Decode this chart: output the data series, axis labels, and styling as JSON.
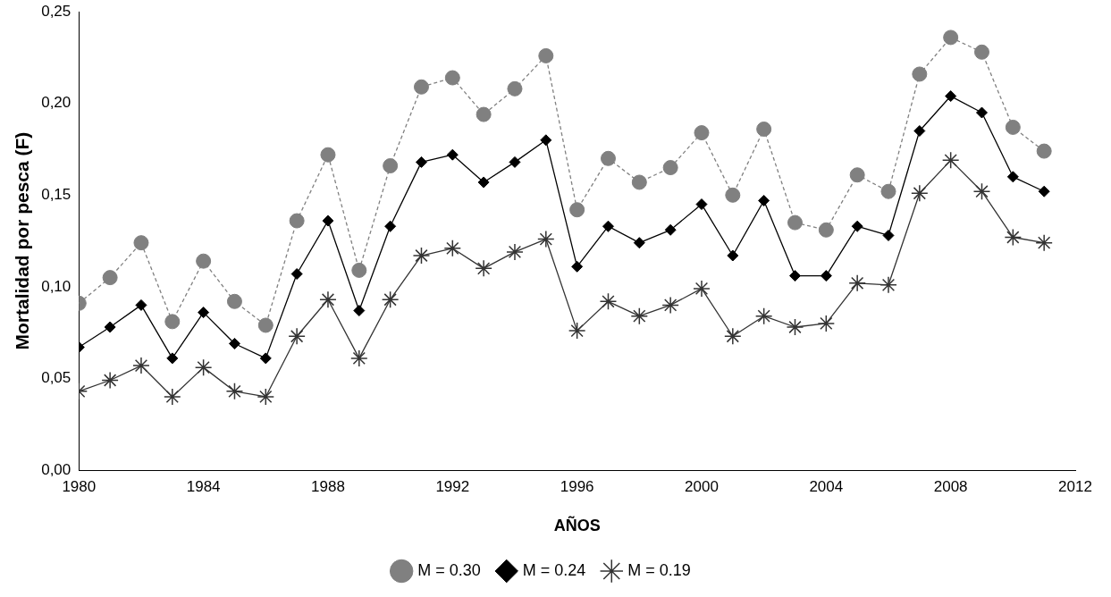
{
  "chart_data": {
    "type": "line",
    "xlabel": "AÑOS",
    "ylabel": "Mortalidad por pesca (F)",
    "x": [
      1980,
      1981,
      1982,
      1983,
      1984,
      1985,
      1986,
      1987,
      1988,
      1989,
      1990,
      1991,
      1992,
      1993,
      1994,
      1995,
      1996,
      1997,
      1998,
      1999,
      2000,
      2001,
      2002,
      2003,
      2004,
      2005,
      2006,
      2007,
      2008,
      2009,
      2010,
      2011
    ],
    "xlim": [
      1980,
      2012
    ],
    "xticks": [
      1980,
      1984,
      1988,
      1992,
      1996,
      2000,
      2004,
      2008,
      2012
    ],
    "ylim": [
      0,
      0.25
    ],
    "yticks": [
      {
        "value": 0,
        "label": "0,00"
      },
      {
        "value": 0.05,
        "label": "0,05"
      },
      {
        "value": 0.1,
        "label": "0,10"
      },
      {
        "value": 0.15,
        "label": "0,15"
      },
      {
        "value": 0.2,
        "label": "0,20"
      },
      {
        "value": 0.25,
        "label": "0,25"
      }
    ],
    "grid": false,
    "legend": "bottom",
    "series": [
      {
        "name": "M = 0.30",
        "color": "#808080",
        "marker": "circle",
        "line_style": "dashed",
        "values": [
          0.091,
          0.105,
          0.124,
          0.081,
          0.114,
          0.092,
          0.079,
          0.136,
          0.172,
          0.109,
          0.166,
          0.209,
          0.214,
          0.194,
          0.208,
          0.226,
          0.142,
          0.17,
          0.157,
          0.165,
          0.184,
          0.15,
          0.186,
          0.135,
          0.131,
          0.161,
          0.152,
          0.216,
          0.236,
          0.228,
          0.187,
          0.174
        ]
      },
      {
        "name": "M = 0.24",
        "color": "#000000",
        "marker": "diamond",
        "line_style": "solid",
        "values": [
          0.067,
          0.078,
          0.09,
          0.061,
          0.086,
          0.069,
          0.061,
          0.107,
          0.136,
          0.087,
          0.133,
          0.168,
          0.172,
          0.157,
          0.168,
          0.18,
          0.111,
          0.133,
          0.124,
          0.131,
          0.145,
          0.117,
          0.147,
          0.106,
          0.106,
          0.133,
          0.128,
          0.185,
          0.204,
          0.195,
          0.16,
          0.152
        ]
      },
      {
        "name": "M = 0.19",
        "color": "#333333",
        "marker": "cross",
        "line_style": "solid",
        "values": [
          0.043,
          0.049,
          0.057,
          0.04,
          0.056,
          0.043,
          0.04,
          0.073,
          0.093,
          0.061,
          0.093,
          0.117,
          0.121,
          0.11,
          0.119,
          0.126,
          0.076,
          0.092,
          0.084,
          0.09,
          0.099,
          0.073,
          0.084,
          0.078,
          0.08,
          0.102,
          0.101,
          0.151,
          0.169,
          0.152,
          0.127,
          0.124
        ]
      }
    ]
  }
}
